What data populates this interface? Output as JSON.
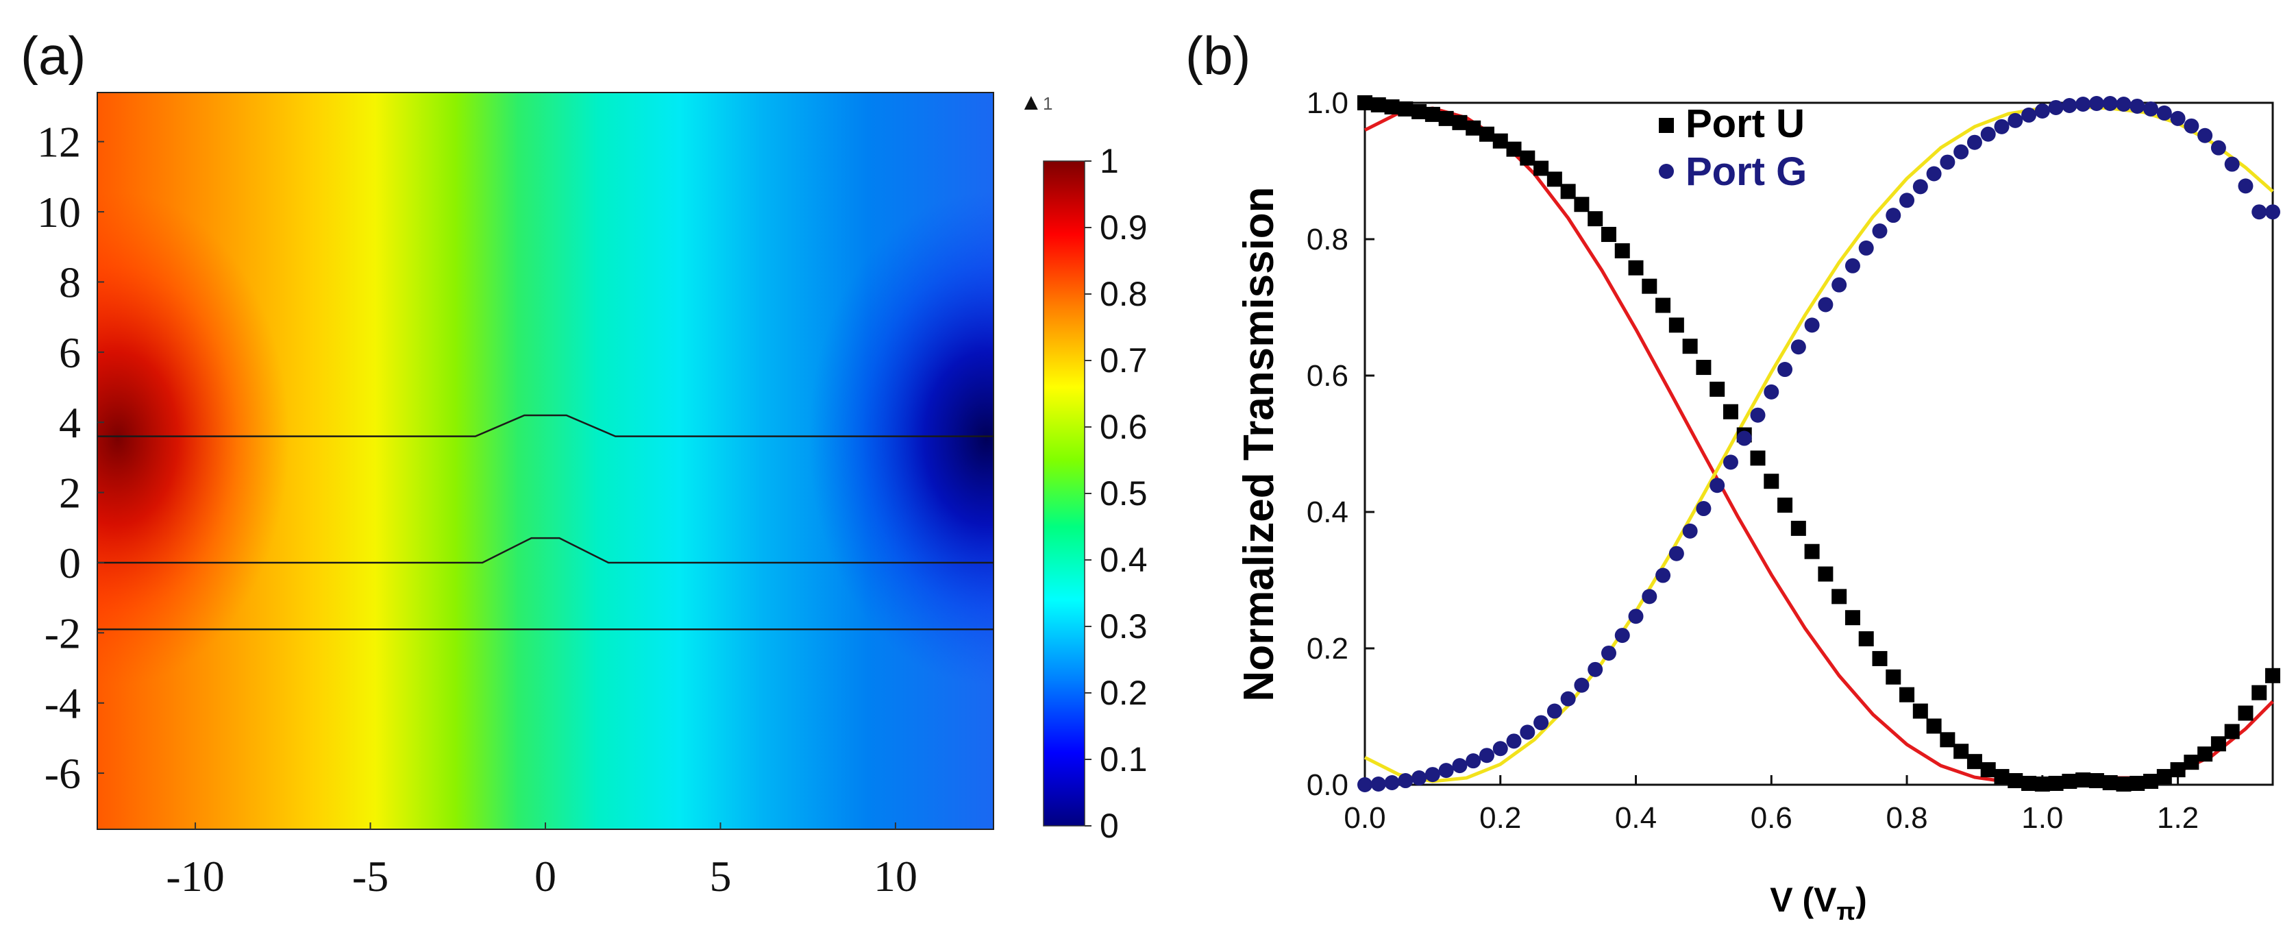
{
  "panel_labels": {
    "a": "(a)",
    "b": "(b)"
  },
  "chart_data": [
    {
      "type": "heatmap",
      "title": "(a)",
      "xlabel": "",
      "ylabel": "",
      "xlim": [
        -12.8,
        12.8
      ],
      "ylim": [
        -7.6,
        13.4
      ],
      "x_ticks": [
        -10,
        -5,
        0,
        5,
        10
      ],
      "x_tick_labels": [
        "-10",
        "-5",
        "0",
        "5",
        "10"
      ],
      "y_ticks": [
        -6,
        -4,
        -2,
        0,
        2,
        4,
        6,
        8,
        10,
        12
      ],
      "y_tick_labels": [
        "-6",
        "-4",
        "-2",
        "0",
        "2",
        "4",
        "6",
        "8",
        "10",
        "12"
      ],
      "colorbar": {
        "range": [
          0,
          1
        ],
        "ticks": [
          0,
          0.1,
          0.2,
          0.3,
          0.4,
          0.5,
          0.6,
          0.7,
          0.8,
          0.9,
          1
        ],
        "tick_labels": [
          "0",
          "0.1",
          "0.2",
          "0.3",
          "0.4",
          "0.5",
          "0.6",
          "0.7",
          "0.8",
          "0.9",
          "1"
        ],
        "max_marker": "▲",
        "max_label": "1",
        "colormap": [
          "#00007f",
          "#0000ff",
          "#0080ff",
          "#00ffff",
          "#00ff80",
          "#80ff00",
          "#ffff00",
          "#ff8000",
          "#ff0000",
          "#7f0000"
        ]
      },
      "boundary_lines": [
        {
          "name": "upper-electrode-line",
          "points": [
            [
              -12.8,
              3.6
            ],
            [
              -2.0,
              3.6
            ],
            [
              -0.6,
              4.2
            ],
            [
              0.6,
              4.2
            ],
            [
              2.0,
              3.6
            ],
            [
              12.8,
              3.6
            ]
          ]
        },
        {
          "name": "lower-waveguide-line",
          "points": [
            [
              -12.8,
              0.0
            ],
            [
              -1.8,
              0.0
            ],
            [
              -0.4,
              0.7
            ],
            [
              0.4,
              0.7
            ],
            [
              1.8,
              0.0
            ],
            [
              12.8,
              0.0
            ]
          ]
        },
        {
          "name": "substrate-line",
          "points": [
            [
              -12.8,
              -1.9
            ],
            [
              12.8,
              -1.9
            ]
          ]
        }
      ]
    },
    {
      "type": "scatter",
      "title": "(b)",
      "xlabel": "V (V",
      "xlabel_sub": "π",
      "xlabel_close": ")",
      "ylabel": "Normalized Transmission",
      "xlim": [
        0.0,
        1.34
      ],
      "ylim": [
        0.0,
        1.0
      ],
      "x_ticks": [
        0.0,
        0.2,
        0.4,
        0.6,
        0.8,
        1.0,
        1.2
      ],
      "x_tick_labels": [
        "0.0",
        "0.2",
        "0.4",
        "0.6",
        "0.8",
        "1.0",
        "1.2"
      ],
      "y_ticks": [
        0.0,
        0.2,
        0.4,
        0.6,
        0.8,
        1.0
      ],
      "y_tick_labels": [
        "0.0",
        "0.2",
        "0.4",
        "0.6",
        "0.8",
        "1.0"
      ],
      "legend": {
        "placement": "top-center",
        "entries": [
          "Port U",
          "Port G"
        ]
      },
      "series": [
        {
          "name": "Port U",
          "marker": "square",
          "color": "#000000",
          "x": [
            0.0,
            0.02,
            0.04,
            0.06,
            0.08,
            0.1,
            0.12,
            0.14,
            0.16,
            0.18,
            0.2,
            0.22,
            0.24,
            0.26,
            0.28,
            0.3,
            0.32,
            0.34,
            0.36,
            0.38,
            0.4,
            0.42,
            0.44,
            0.46,
            0.48,
            0.5,
            0.52,
            0.54,
            0.56,
            0.58,
            0.6,
            0.62,
            0.64,
            0.66,
            0.68,
            0.7,
            0.72,
            0.74,
            0.76,
            0.78,
            0.8,
            0.82,
            0.84,
            0.86,
            0.88,
            0.9,
            0.92,
            0.94,
            0.96,
            0.98,
            1.0,
            1.02,
            1.04,
            1.06,
            1.08,
            1.1,
            1.12,
            1.14,
            1.16,
            1.18,
            1.2,
            1.22,
            1.24,
            1.26,
            1.28,
            1.3,
            1.32,
            1.34
          ],
          "y": [
            1.0,
            0.997,
            0.994,
            0.991,
            0.987,
            0.983,
            0.977,
            0.971,
            0.963,
            0.954,
            0.944,
            0.932,
            0.919,
            0.904,
            0.888,
            0.87,
            0.851,
            0.83,
            0.807,
            0.783,
            0.758,
            0.731,
            0.703,
            0.674,
            0.643,
            0.612,
            0.58,
            0.547,
            0.513,
            0.479,
            0.445,
            0.41,
            0.376,
            0.342,
            0.309,
            0.276,
            0.245,
            0.214,
            0.185,
            0.158,
            0.132,
            0.108,
            0.086,
            0.066,
            0.049,
            0.034,
            0.022,
            0.012,
            0.006,
            0.002,
            0.001,
            0.002,
            0.005,
            0.007,
            0.006,
            0.003,
            0.001,
            0.002,
            0.005,
            0.012,
            0.022,
            0.033,
            0.045,
            0.06,
            0.078,
            0.105,
            0.135,
            0.16
          ]
        },
        {
          "name": "Port G",
          "marker": "circle",
          "color": "#1c1c80",
          "x": [
            0.0,
            0.02,
            0.04,
            0.06,
            0.08,
            0.1,
            0.12,
            0.14,
            0.16,
            0.18,
            0.2,
            0.22,
            0.24,
            0.26,
            0.28,
            0.3,
            0.32,
            0.34,
            0.36,
            0.38,
            0.4,
            0.42,
            0.44,
            0.46,
            0.48,
            0.5,
            0.52,
            0.54,
            0.56,
            0.58,
            0.6,
            0.62,
            0.64,
            0.66,
            0.68,
            0.7,
            0.72,
            0.74,
            0.76,
            0.78,
            0.8,
            0.82,
            0.84,
            0.86,
            0.88,
            0.9,
            0.92,
            0.94,
            0.96,
            0.98,
            1.0,
            1.02,
            1.04,
            1.06,
            1.08,
            1.1,
            1.12,
            1.14,
            1.16,
            1.18,
            1.2,
            1.22,
            1.24,
            1.26,
            1.28,
            1.3,
            1.32,
            1.34
          ],
          "y": [
            0.0,
            0.001,
            0.003,
            0.006,
            0.01,
            0.015,
            0.021,
            0.028,
            0.035,
            0.043,
            0.053,
            0.064,
            0.077,
            0.091,
            0.108,
            0.126,
            0.146,
            0.169,
            0.193,
            0.219,
            0.247,
            0.276,
            0.307,
            0.339,
            0.372,
            0.405,
            0.439,
            0.473,
            0.508,
            0.542,
            0.576,
            0.609,
            0.642,
            0.674,
            0.704,
            0.733,
            0.761,
            0.787,
            0.812,
            0.835,
            0.857,
            0.877,
            0.896,
            0.913,
            0.928,
            0.942,
            0.954,
            0.965,
            0.974,
            0.982,
            0.988,
            0.993,
            0.996,
            0.998,
            0.999,
            0.999,
            0.998,
            0.995,
            0.991,
            0.985,
            0.977,
            0.966,
            0.952,
            0.934,
            0.91,
            0.878,
            0.84,
            0.84
          ]
        },
        {
          "name": "Port U fit",
          "line": true,
          "color": "#e31a1c",
          "x": [
            0.0,
            0.05,
            0.1,
            0.15,
            0.2,
            0.25,
            0.3,
            0.35,
            0.4,
            0.45,
            0.5,
            0.55,
            0.6,
            0.65,
            0.7,
            0.75,
            0.8,
            0.85,
            0.9,
            0.95,
            1.0,
            1.05,
            1.1,
            1.15,
            1.2,
            1.25,
            1.3,
            1.34
          ],
          "y": [
            0.96,
            0.985,
            0.992,
            0.978,
            0.946,
            0.896,
            0.831,
            0.754,
            0.668,
            0.577,
            0.485,
            0.394,
            0.308,
            0.229,
            0.16,
            0.103,
            0.059,
            0.028,
            0.011,
            0.004,
            0.005,
            0.009,
            0.01,
            0.01,
            0.019,
            0.042,
            0.082,
            0.122
          ]
        },
        {
          "name": "Port G fit",
          "line": true,
          "color": "#f2e21b",
          "x": [
            0.0,
            0.05,
            0.1,
            0.15,
            0.2,
            0.25,
            0.3,
            0.35,
            0.4,
            0.45,
            0.5,
            0.55,
            0.6,
            0.65,
            0.7,
            0.75,
            0.8,
            0.85,
            0.9,
            0.95,
            1.0,
            1.05,
            1.1,
            1.15,
            1.2,
            1.25,
            1.3,
            1.34
          ],
          "y": [
            0.04,
            0.015,
            0.005,
            0.01,
            0.03,
            0.066,
            0.116,
            0.179,
            0.254,
            0.337,
            0.426,
            0.516,
            0.605,
            0.689,
            0.766,
            0.833,
            0.889,
            0.934,
            0.965,
            0.984,
            0.992,
            0.994,
            0.992,
            0.986,
            0.97,
            0.942,
            0.905,
            0.87
          ]
        }
      ]
    }
  ]
}
